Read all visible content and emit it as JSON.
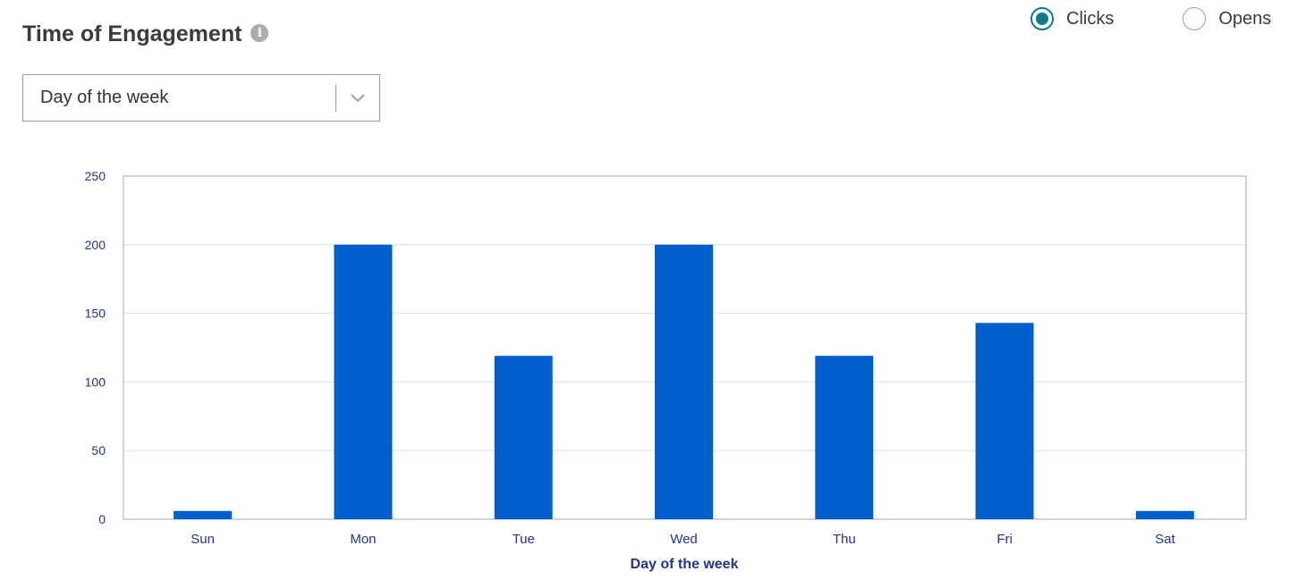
{
  "header": {
    "title": "Time of Engagement",
    "info_icon": "info-icon"
  },
  "metric_toggle": {
    "options": [
      {
        "label": "Clicks",
        "checked": true
      },
      {
        "label": "Opens",
        "checked": false
      }
    ],
    "accent_color": "#0f7c8a"
  },
  "grouping_select": {
    "value": "Day of the week",
    "icon": "chevron-down-icon"
  },
  "chart_data": {
    "type": "bar",
    "categories": [
      "Sun",
      "Mon",
      "Tue",
      "Wed",
      "Thu",
      "Fri",
      "Sat"
    ],
    "series": [
      {
        "values": [
          6,
          200,
          119,
          200,
          119,
          143,
          6
        ],
        "color": "#005fcc"
      }
    ],
    "xlabel": "Day of the week",
    "ylabel": "",
    "ylim": [
      0,
      250
    ],
    "yticks": [
      0,
      50,
      100,
      150,
      200,
      250
    ],
    "grid": true,
    "legend": "none"
  }
}
